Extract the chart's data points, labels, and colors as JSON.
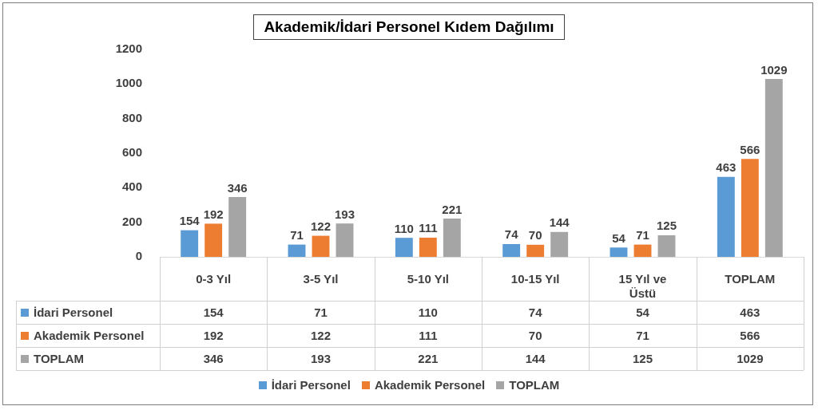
{
  "chart_data": {
    "type": "bar",
    "title": "Akademik/İdari Personel Kıdem Dağılımı",
    "categories": [
      "0-3 Yıl",
      "3-5 Yıl",
      "5-10 Yıl",
      "10-15 Yıl",
      "15 Yıl ve Üstü",
      "TOPLAM"
    ],
    "series": [
      {
        "name": "İdari Personel",
        "color": "#5b9bd5",
        "values": [
          154,
          71,
          110,
          74,
          54,
          463
        ],
        "value_labels": [
          "154",
          "71",
          "110",
          "74",
          "54",
          "463"
        ]
      },
      {
        "name": "Akademik Personel",
        "color": "#ed7d31",
        "values": [
          192,
          122,
          111,
          70,
          71,
          566
        ],
        "value_labels": [
          "192",
          "122",
          "111",
          "70",
          "71",
          "566"
        ]
      },
      {
        "name": "TOPLAM",
        "color": "#a5a5a5",
        "values": [
          346,
          193,
          221,
          144,
          125,
          1029
        ],
        "value_labels": [
          "346",
          "193",
          "221",
          "144",
          "125",
          "1029"
        ]
      }
    ],
    "annotations": [
      "154",
      "71",
      "110",
      "74",
      "54",
      "463",
      "192",
      "122",
      "111",
      "70",
      "71",
      "566",
      "346",
      "193",
      "221",
      "144",
      "125",
      "1029"
    ],
    "ylim": [
      0,
      1200
    ],
    "yticks": [
      0,
      200,
      400,
      600,
      800,
      1000,
      1200
    ],
    "grid": false,
    "legend": "bottom"
  }
}
